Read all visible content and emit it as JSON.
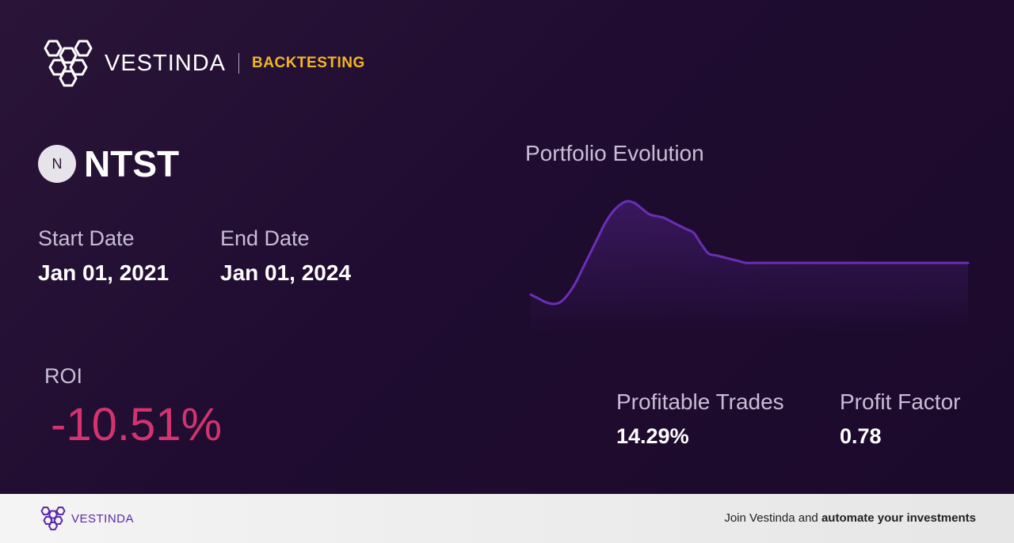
{
  "brand": {
    "name": "VESTINDA",
    "tag": "BACKTESTING",
    "logo_icon": "hexagon-cluster-logo",
    "accent_color": "#f3b623"
  },
  "ticker": {
    "badge_letter": "N",
    "symbol": "NTST"
  },
  "dates": {
    "start_label": "Start Date",
    "start_value": "Jan 01, 2021",
    "end_label": "End Date",
    "end_value": "Jan 01, 2024"
  },
  "roi": {
    "label": "ROI",
    "value": "-10.51%",
    "color": "#d3336f"
  },
  "chart_data": {
    "type": "line",
    "title": "Portfolio Evolution",
    "line_color": "#6a2fb5",
    "values": [
      78,
      77,
      76,
      75.5,
      76,
      78,
      81,
      85,
      89,
      93,
      97,
      100,
      102,
      103,
      102.5,
      101,
      99.5,
      99,
      98.5,
      97.5,
      96.5,
      95.5,
      94.5,
      91.5,
      89,
      88.5,
      88,
      87.5,
      87,
      86.5,
      86.5,
      86.5,
      86.5,
      86.5,
      86.5,
      86.5,
      86.5,
      86.5,
      86.5,
      86.5,
      86.5,
      86.5,
      86.5,
      86.5,
      86.5,
      86.5,
      86.5,
      86.5,
      86.5,
      86.5,
      86.5,
      86.5,
      86.5,
      86.5,
      86.5,
      86.5,
      86.5,
      86.5,
      86.5,
      86.5
    ],
    "ylim": [
      70,
      106
    ]
  },
  "stats": {
    "trades_label": "Profitable Trades",
    "trades_value": "14.29%",
    "factor_label": "Profit Factor",
    "factor_value": "0.78"
  },
  "footer": {
    "brand": "VESTINDA",
    "cta_prefix": "Join Vestinda and ",
    "cta_bold": "automate your investments",
    "brand_color": "#5b2aa8"
  }
}
